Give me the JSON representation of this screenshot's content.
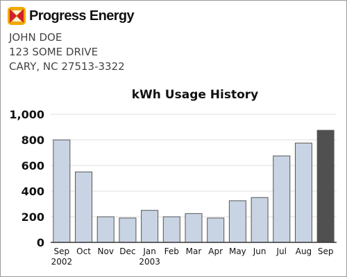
{
  "header": {
    "company": "Progress Energy",
    "logo_icon": "progress-energy-logo-icon",
    "accent_colors": [
      "#d0202f",
      "#f2a900"
    ]
  },
  "customer": {
    "name": "JOHN DOE",
    "street": "123 SOME DRIVE",
    "city_state_zip": "CARY, NC 27513-3322"
  },
  "chart_data": {
    "type": "bar",
    "title": "kWh Usage History",
    "xlabel": "",
    "ylabel": "",
    "categories": [
      "Sep",
      "Oct",
      "Nov",
      "Dec",
      "Jan",
      "Feb",
      "Mar",
      "Apr",
      "May",
      "Jun",
      "Jul",
      "Aug",
      "Sep"
    ],
    "year_labels": [
      "2002",
      "",
      "",
      "",
      "2003",
      "",
      "",
      "",
      "",
      "",
      "",
      "",
      ""
    ],
    "values": [
      800,
      550,
      200,
      190,
      250,
      200,
      225,
      190,
      325,
      350,
      675,
      775,
      875
    ],
    "yticks": [
      "0",
      "200",
      "400",
      "600",
      "800",
      "1,000"
    ],
    "ylim": [
      0,
      1000
    ],
    "grid": true,
    "bar_color": "#c8d4e3",
    "highlight_color": "#505050",
    "highlight_index": 12
  }
}
